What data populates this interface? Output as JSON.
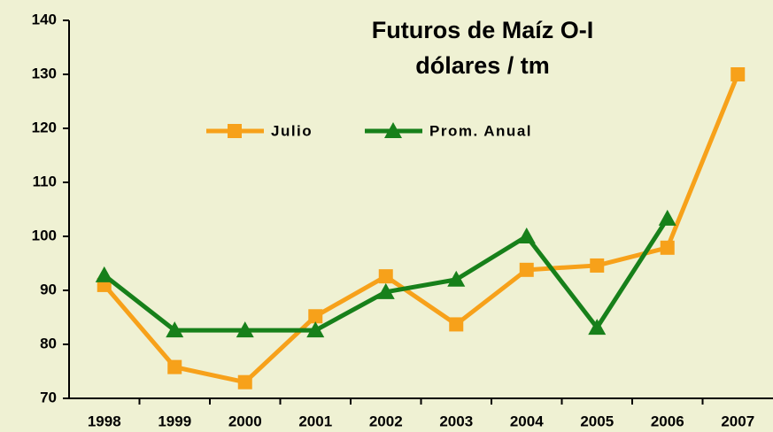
{
  "chart_data": {
    "type": "line",
    "title": [
      "Futuros de Maíz O-I",
      "dólares / tm"
    ],
    "categories": [
      "1998",
      "1999",
      "2000",
      "2001",
      "2002",
      "2003",
      "2004",
      "2005",
      "2006",
      "2007"
    ],
    "series": [
      {
        "name": "Julio",
        "color": "#f7a11a",
        "marker": "square",
        "values": [
          91,
          75.8,
          73,
          85.2,
          92.6,
          83.7,
          93.8,
          94.6,
          97.9,
          130
        ]
      },
      {
        "name": "Prom. Anual",
        "color": "#17801a",
        "marker": "triangle",
        "values": [
          92.8,
          82.6,
          82.6,
          82.6,
          89.7,
          92,
          100,
          83.1,
          103.3,
          null
        ]
      }
    ],
    "ylim": [
      70,
      140
    ],
    "yticks": [
      70,
      80,
      90,
      100,
      110,
      120,
      130,
      140
    ],
    "grid": false,
    "legend": "top"
  }
}
